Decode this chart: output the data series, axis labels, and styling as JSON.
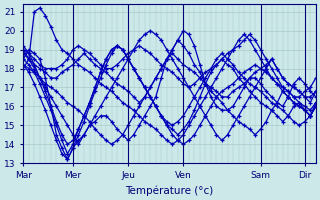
{
  "xlabel": "Température (°c)",
  "ylim": [
    13,
    21.4
  ],
  "yticks": [
    13,
    14,
    15,
    16,
    17,
    18,
    19,
    20,
    21
  ],
  "day_labels": [
    "Mar",
    "Mer",
    "Jeu",
    "Ven",
    "Sam",
    "Dir"
  ],
  "line_color": "#0000bb",
  "bg_color": "#cce8e8",
  "grid_color": "#aacaca",
  "marker": "+",
  "marker_size": 3.5,
  "line_width": 0.9,
  "lines": [
    [
      18.5,
      19.0,
      18.8,
      18.5,
      17.5,
      16.0,
      14.5,
      13.8,
      13.2,
      13.8,
      14.2,
      14.5,
      15.0,
      15.2,
      15.5,
      15.5,
      15.2,
      14.8,
      14.5,
      14.2,
      14.5,
      15.0,
      15.5,
      16.0,
      16.5,
      17.5,
      18.5,
      19.0,
      19.5,
      20.0,
      19.8,
      19.2,
      18.2,
      17.2,
      16.5,
      16.0,
      15.8,
      15.8,
      16.0,
      16.5,
      17.0,
      17.5,
      17.5,
      17.2,
      16.8,
      16.5,
      16.2,
      16.0,
      16.5,
      17.2,
      17.5,
      17.2,
      16.8,
      16.5
    ],
    [
      19.0,
      18.8,
      18.5,
      18.2,
      18.0,
      18.0,
      18.0,
      18.2,
      18.5,
      19.0,
      19.2,
      19.0,
      18.8,
      18.5,
      18.2,
      18.0,
      18.0,
      18.2,
      18.5,
      18.8,
      19.0,
      19.2,
      19.0,
      18.8,
      18.5,
      18.2,
      18.0,
      17.8,
      17.5,
      17.2,
      17.0,
      17.2,
      17.5,
      17.8,
      18.0,
      18.2,
      18.5,
      18.8,
      19.0,
      19.2,
      19.5,
      19.8,
      19.5,
      19.0,
      18.5,
      18.0,
      17.5,
      17.0,
      16.8,
      16.5,
      16.5,
      16.8,
      17.0,
      17.5
    ],
    [
      18.8,
      18.5,
      18.2,
      18.0,
      17.8,
      17.5,
      17.5,
      17.8,
      18.0,
      18.2,
      18.5,
      18.8,
      18.5,
      18.2,
      18.0,
      17.8,
      17.5,
      17.2,
      17.0,
      16.8,
      16.5,
      16.2,
      16.5,
      17.0,
      17.5,
      18.0,
      18.5,
      18.8,
      18.5,
      18.2,
      18.0,
      17.8,
      17.5,
      17.2,
      17.0,
      16.8,
      16.5,
      16.5,
      16.8,
      17.0,
      17.2,
      17.5,
      17.8,
      18.0,
      18.2,
      18.5,
      18.0,
      17.5,
      17.2,
      17.0,
      16.8,
      16.5,
      16.5,
      16.8
    ],
    [
      18.2,
      17.8,
      17.2,
      16.5,
      15.8,
      15.0,
      14.2,
      13.5,
      13.2,
      13.8,
      14.5,
      15.2,
      16.0,
      16.8,
      17.5,
      18.2,
      18.8,
      19.2,
      19.0,
      18.5,
      18.0,
      17.5,
      17.0,
      16.5,
      16.0,
      15.5,
      15.0,
      14.5,
      14.2,
      14.0,
      14.2,
      14.5,
      15.0,
      15.5,
      16.0,
      16.5,
      16.8,
      17.0,
      17.2,
      17.5,
      17.8,
      18.0,
      18.2,
      18.0,
      17.8,
      17.5,
      17.2,
      16.8,
      16.5,
      16.2,
      16.0,
      15.8,
      15.5,
      16.0
    ],
    [
      19.2,
      18.8,
      18.2,
      17.5,
      16.8,
      16.0,
      15.2,
      14.5,
      14.0,
      14.2,
      14.8,
      15.5,
      16.2,
      17.0,
      17.8,
      18.5,
      19.0,
      19.2,
      19.0,
      18.5,
      18.0,
      17.5,
      17.0,
      16.5,
      16.0,
      15.5,
      15.2,
      15.0,
      15.2,
      15.5,
      16.0,
      16.5,
      17.0,
      17.5,
      18.0,
      18.5,
      18.8,
      18.5,
      18.2,
      17.8,
      17.5,
      17.2,
      17.0,
      16.8,
      16.5,
      16.2,
      16.0,
      15.8,
      15.5,
      15.2,
      15.0,
      15.2,
      15.5,
      16.0
    ],
    [
      18.0,
      18.5,
      21.0,
      21.2,
      20.8,
      20.2,
      19.5,
      19.0,
      18.8,
      18.5,
      18.2,
      18.0,
      17.8,
      17.5,
      17.2,
      17.0,
      16.8,
      16.5,
      16.2,
      16.0,
      15.8,
      15.5,
      15.2,
      15.0,
      14.8,
      14.5,
      14.2,
      14.0,
      14.2,
      14.5,
      15.0,
      15.5,
      16.0,
      16.5,
      17.0,
      17.5,
      18.0,
      18.5,
      19.0,
      19.5,
      19.8,
      19.5,
      19.0,
      18.5,
      18.0,
      17.5,
      17.2,
      17.0,
      16.8,
      16.5,
      16.2,
      16.0,
      15.8,
      16.2
    ],
    [
      18.5,
      18.2,
      17.8,
      17.2,
      16.5,
      15.8,
      15.0,
      14.2,
      13.5,
      14.0,
      14.8,
      15.5,
      16.2,
      17.0,
      17.8,
      18.5,
      19.0,
      19.2,
      19.0,
      18.5,
      18.0,
      17.5,
      17.0,
      16.5,
      16.0,
      15.5,
      15.0,
      14.8,
      14.5,
      14.8,
      15.2,
      15.8,
      16.5,
      17.2,
      17.8,
      18.2,
      18.5,
      18.2,
      18.0,
      17.5,
      17.2,
      16.8,
      16.5,
      16.2,
      16.0,
      15.8,
      15.5,
      15.2,
      15.5,
      16.0,
      16.2,
      15.8,
      15.5,
      16.0
    ],
    [
      19.0,
      18.5,
      18.0,
      17.5,
      17.0,
      16.5,
      16.0,
      15.5,
      15.0,
      14.5,
      14.0,
      14.5,
      15.0,
      15.5,
      16.0,
      16.5,
      17.0,
      17.5,
      18.0,
      18.5,
      19.0,
      19.5,
      19.8,
      20.0,
      19.8,
      19.5,
      19.0,
      18.5,
      18.0,
      17.5,
      17.0,
      16.5,
      16.0,
      15.5,
      15.0,
      14.5,
      14.2,
      14.5,
      15.0,
      15.5,
      16.0,
      16.5,
      17.0,
      17.5,
      18.0,
      18.5,
      18.0,
      17.5,
      17.2,
      17.0,
      16.8,
      16.5,
      16.2,
      16.8
    ],
    [
      18.2,
      18.0,
      17.8,
      17.5,
      17.2,
      17.0,
      16.8,
      16.5,
      16.2,
      16.0,
      15.8,
      15.5,
      15.2,
      14.8,
      14.5,
      14.2,
      14.0,
      14.2,
      14.5,
      15.0,
      15.5,
      16.0,
      16.5,
      17.0,
      17.5,
      18.0,
      18.5,
      19.0,
      19.5,
      19.2,
      18.8,
      18.2,
      17.8,
      17.2,
      16.8,
      16.5,
      16.2,
      15.8,
      15.5,
      15.2,
      15.0,
      14.8,
      14.5,
      14.8,
      15.2,
      15.8,
      16.2,
      16.8,
      16.5,
      16.2,
      16.0,
      15.8,
      15.5,
      16.2
    ]
  ],
  "num_points": 54,
  "day_tick_positions": [
    0,
    9,
    19,
    29,
    43,
    51
  ],
  "vline_positions": [
    9,
    19,
    29,
    43,
    51
  ]
}
